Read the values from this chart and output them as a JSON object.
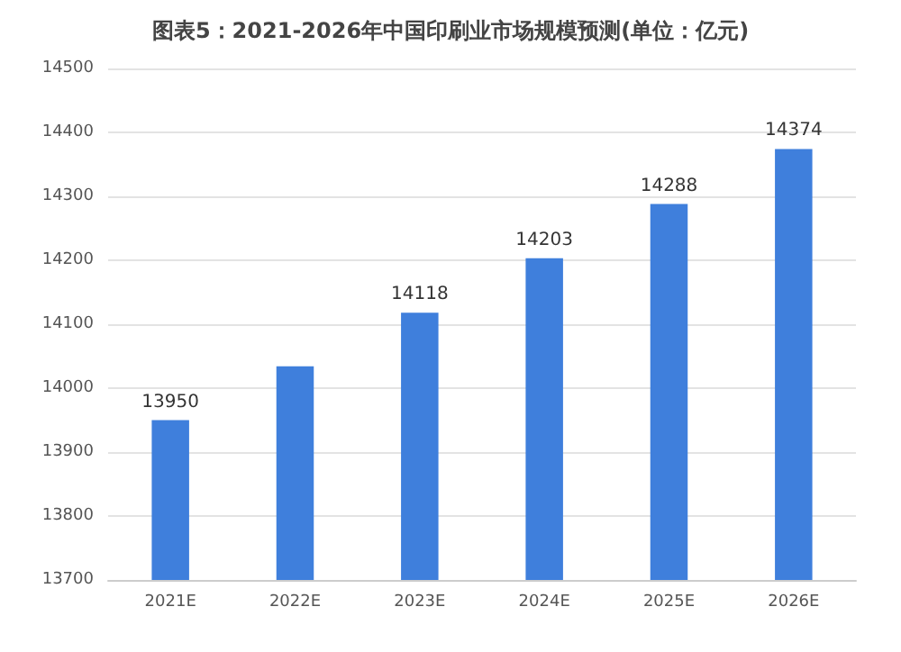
{
  "chart_data": {
    "type": "bar",
    "title": "图表5：2021-2026年中国印刷业市场规模预测(单位：亿元)",
    "categories": [
      "2021E",
      "2022E",
      "2023E",
      "2024E",
      "2025E",
      "2026E"
    ],
    "values": [
      13950,
      14034,
      14118,
      14203,
      14288,
      14374
    ],
    "value_labels": [
      "13950",
      null,
      "14118",
      "14203",
      "14288",
      "14374"
    ],
    "color": "#3f7fdc",
    "ylim": [
      13700,
      14500
    ],
    "yticks": [
      13700,
      13800,
      13900,
      14000,
      14100,
      14200,
      14300,
      14400,
      14500
    ],
    "grid": "y"
  }
}
